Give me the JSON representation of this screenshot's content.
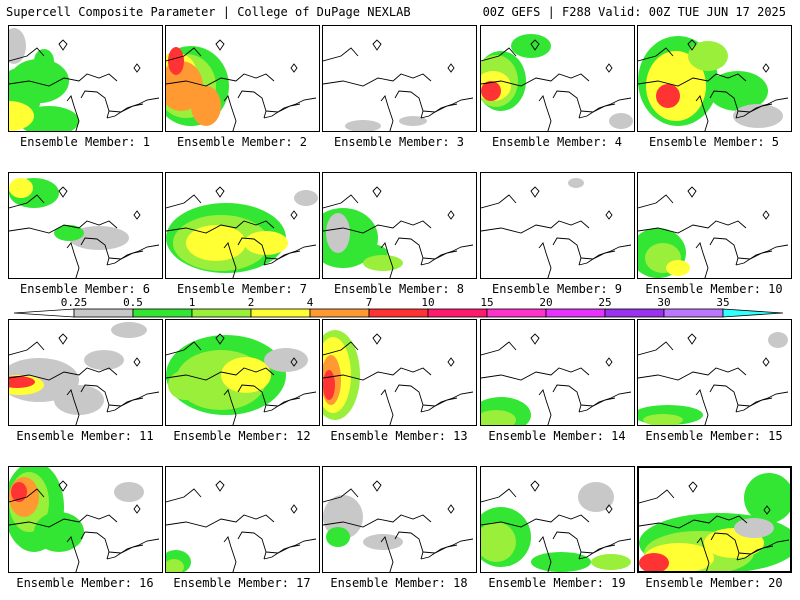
{
  "header": {
    "left": "Supercell Composite Parameter | College of DuPage NEXLAB",
    "right": "00Z GEFS | F288 Valid: 00Z TUE JUN 17 2025"
  },
  "colorbar": {
    "labels": [
      "0.25",
      "0.5",
      "1",
      "2",
      "4",
      "7",
      "10",
      "15",
      "20",
      "25",
      "30",
      "35"
    ],
    "colors": [
      "#c8c8c8",
      "#33e633",
      "#99ef3a",
      "#ffff33",
      "#ff9a33",
      "#ff3333",
      "#ff1a6e",
      "#ff33cc",
      "#e633ff",
      "#9933ee",
      "#bb77ff",
      "#33ffff"
    ]
  },
  "panels": [
    {
      "label": "Ensemble Member: 1",
      "blobs": [
        [
          30,
          55,
          30,
          22,
          1
        ],
        [
          10,
          70,
          22,
          28,
          1
        ],
        [
          40,
          95,
          30,
          15,
          1
        ],
        [
          5,
          20,
          12,
          18,
          0
        ],
        [
          35,
          35,
          10,
          12,
          1
        ],
        [
          0,
          90,
          25,
          15,
          3
        ]
      ]
    },
    {
      "label": "Ensemble Member: 2",
      "blobs": [
        [
          25,
          60,
          38,
          40,
          1
        ],
        [
          20,
          60,
          30,
          32,
          2
        ],
        [
          10,
          45,
          20,
          18,
          3
        ],
        [
          15,
          60,
          22,
          25,
          4
        ],
        [
          10,
          35,
          8,
          14,
          5
        ],
        [
          40,
          80,
          15,
          20,
          4
        ]
      ]
    },
    {
      "label": "Ensemble Member: 3",
      "blobs": [
        [
          40,
          100,
          18,
          6,
          0
        ],
        [
          90,
          95,
          14,
          5,
          0
        ]
      ]
    },
    {
      "label": "Ensemble Member: 4",
      "blobs": [
        [
          20,
          55,
          25,
          30,
          1
        ],
        [
          15,
          55,
          22,
          26,
          2
        ],
        [
          12,
          60,
          18,
          15,
          3
        ],
        [
          10,
          65,
          10,
          10,
          5
        ],
        [
          50,
          20,
          20,
          12,
          1
        ],
        [
          140,
          95,
          12,
          8,
          0
        ]
      ]
    },
    {
      "label": "Ensemble Member: 5",
      "blobs": [
        [
          40,
          55,
          40,
          45,
          1
        ],
        [
          38,
          60,
          30,
          35,
          3
        ],
        [
          30,
          70,
          12,
          12,
          5
        ],
        [
          70,
          30,
          20,
          15,
          2
        ],
        [
          100,
          65,
          30,
          20,
          1
        ],
        [
          120,
          90,
          25,
          12,
          0
        ]
      ]
    },
    {
      "label": "Ensemble Member: 6",
      "blobs": [
        [
          25,
          20,
          25,
          15,
          1
        ],
        [
          12,
          15,
          12,
          10,
          3
        ],
        [
          90,
          65,
          30,
          12,
          0
        ],
        [
          60,
          60,
          15,
          8,
          1
        ]
      ]
    },
    {
      "label": "Ensemble Member: 7",
      "blobs": [
        [
          60,
          65,
          60,
          35,
          1
        ],
        [
          55,
          70,
          48,
          28,
          2
        ],
        [
          50,
          70,
          30,
          18,
          3
        ],
        [
          100,
          70,
          22,
          12,
          3
        ],
        [
          140,
          25,
          12,
          8,
          0
        ]
      ]
    },
    {
      "label": "Ensemble Member: 8",
      "blobs": [
        [
          20,
          65,
          35,
          30,
          1
        ],
        [
          40,
          80,
          25,
          10,
          1
        ],
        [
          60,
          90,
          20,
          8,
          2
        ],
        [
          15,
          60,
          12,
          20,
          0
        ]
      ]
    },
    {
      "label": "Ensemble Member: 9",
      "blobs": [
        [
          95,
          10,
          8,
          5,
          0
        ]
      ]
    },
    {
      "label": "Ensemble Member: 10",
      "blobs": [
        [
          20,
          80,
          28,
          25,
          1
        ],
        [
          25,
          85,
          18,
          15,
          2
        ],
        [
          40,
          95,
          12,
          8,
          3
        ]
      ]
    },
    {
      "label": "Ensemble Member: 11",
      "blobs": [
        [
          30,
          60,
          40,
          22,
          0
        ],
        [
          10,
          65,
          25,
          10,
          3
        ],
        [
          8,
          62,
          18,
          6,
          5
        ],
        [
          70,
          80,
          25,
          15,
          0
        ],
        [
          95,
          40,
          20,
          10,
          0
        ],
        [
          120,
          10,
          18,
          8,
          0
        ]
      ]
    },
    {
      "label": "Ensemble Member: 12",
      "blobs": [
        [
          60,
          55,
          60,
          40,
          1
        ],
        [
          55,
          60,
          45,
          30,
          2
        ],
        [
          80,
          55,
          25,
          18,
          3
        ],
        [
          120,
          40,
          22,
          12,
          0
        ],
        [
          20,
          65,
          18,
          15,
          2
        ]
      ]
    },
    {
      "label": "Ensemble Member: 13",
      "blobs": [
        [
          12,
          55,
          25,
          45,
          2
        ],
        [
          10,
          55,
          18,
          38,
          3
        ],
        [
          8,
          60,
          10,
          25,
          4
        ],
        [
          6,
          65,
          6,
          15,
          5
        ]
      ]
    },
    {
      "label": "Ensemble Member: 14",
      "blobs": [
        [
          20,
          95,
          30,
          18,
          1
        ],
        [
          15,
          100,
          20,
          10,
          2
        ]
      ]
    },
    {
      "label": "Ensemble Member: 15",
      "blobs": [
        [
          30,
          95,
          35,
          10,
          1
        ],
        [
          25,
          100,
          20,
          6,
          2
        ],
        [
          140,
          20,
          10,
          8,
          0
        ]
      ]
    },
    {
      "label": "Ensemble Member: 16",
      "blobs": [
        [
          25,
          40,
          30,
          45,
          1
        ],
        [
          20,
          35,
          20,
          30,
          2
        ],
        [
          15,
          30,
          15,
          20,
          4
        ],
        [
          10,
          25,
          8,
          10,
          5
        ],
        [
          50,
          65,
          25,
          20,
          1
        ],
        [
          120,
          25,
          15,
          10,
          0
        ]
      ]
    },
    {
      "label": "Ensemble Member: 17",
      "blobs": [
        [
          10,
          95,
          15,
          12,
          1
        ],
        [
          8,
          100,
          10,
          8,
          2
        ]
      ]
    },
    {
      "label": "Ensemble Member: 18",
      "blobs": [
        [
          20,
          50,
          20,
          22,
          0
        ],
        [
          15,
          70,
          12,
          10,
          1
        ],
        [
          60,
          75,
          20,
          8,
          0
        ]
      ]
    },
    {
      "label": "Ensemble Member: 19",
      "blobs": [
        [
          20,
          70,
          30,
          30,
          1
        ],
        [
          15,
          75,
          20,
          20,
          2
        ],
        [
          80,
          95,
          30,
          10,
          1
        ],
        [
          115,
          30,
          18,
          15,
          0
        ],
        [
          130,
          95,
          20,
          8,
          2
        ]
      ]
    },
    {
      "label": "Ensemble Member: 20",
      "blobs": [
        [
          80,
          75,
          80,
          30,
          1
        ],
        [
          60,
          85,
          55,
          22,
          2
        ],
        [
          40,
          90,
          35,
          15,
          3
        ],
        [
          95,
          75,
          30,
          15,
          3
        ],
        [
          15,
          95,
          15,
          10,
          5
        ],
        [
          130,
          30,
          25,
          25,
          1
        ],
        [
          115,
          60,
          20,
          10,
          0
        ]
      ]
    }
  ]
}
